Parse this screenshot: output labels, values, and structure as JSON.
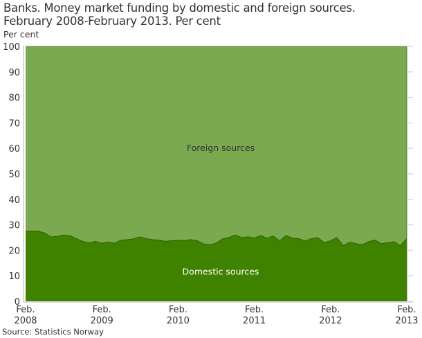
{
  "header": {
    "title_line1": "Banks. Money market funding by domestic and foreign sources.",
    "title_line2": "February 2008-February 2013. Per cent"
  },
  "axis": {
    "y_unit_label": "Per cent"
  },
  "footer": {
    "source": "Source: Statistics Norway"
  },
  "colors": {
    "domestic": "#3f8200",
    "foreign": "#7ba94f",
    "boundary_line": "#2e5e00",
    "axis": "#d9d9d9"
  },
  "chart_data": {
    "type": "area",
    "stacked": true,
    "title": "Banks. Money market funding by domestic and foreign sources. February 2008-February 2013. Per cent",
    "xlabel": "",
    "ylabel": "Per cent",
    "ylim": [
      0,
      100
    ],
    "yticks": [
      0,
      10,
      20,
      30,
      40,
      50,
      60,
      70,
      80,
      90,
      100
    ],
    "xticks": [
      {
        "line1": "Feb.",
        "line2": "2008",
        "index": 0
      },
      {
        "line1": "Feb.",
        "line2": "2009",
        "index": 12
      },
      {
        "line1": "Feb.",
        "line2": "2010",
        "index": 24
      },
      {
        "line1": "Feb.",
        "line2": "2011",
        "index": 36
      },
      {
        "line1": "Feb.",
        "line2": "2012",
        "index": 48
      },
      {
        "line1": "Feb.",
        "line2": "2013",
        "index": 60
      }
    ],
    "grid": false,
    "legend": "inline labels",
    "x_start": "2008-02",
    "x_end": "2013-02",
    "frequency": "monthly",
    "series": [
      {
        "name": "Domestic sources",
        "values": [
          27.5,
          27.5,
          27.5,
          26.8,
          25.2,
          25.5,
          26.0,
          25.7,
          24.6,
          23.5,
          22.9,
          23.5,
          22.8,
          23.2,
          22.8,
          24.0,
          24.2,
          24.5,
          25.3,
          24.6,
          24.2,
          24.0,
          23.5,
          23.8,
          23.9,
          23.8,
          24.2,
          23.8,
          22.5,
          22.2,
          22.8,
          24.5,
          25.0,
          26.0,
          25.0,
          25.3,
          24.8,
          25.8,
          24.8,
          25.6,
          23.7,
          25.8,
          24.8,
          24.6,
          23.6,
          24.6,
          25.0,
          23.0,
          23.8,
          25.0,
          21.8,
          23.2,
          22.6,
          22.2,
          23.4,
          24.0,
          22.6,
          23.0,
          23.4,
          21.8,
          24.6
        ]
      },
      {
        "name": "Foreign sources",
        "values": [
          72.5,
          72.5,
          72.5,
          73.2,
          74.8,
          74.5,
          74.0,
          74.3,
          75.4,
          76.5,
          77.1,
          76.5,
          77.2,
          76.8,
          77.2,
          76.0,
          75.8,
          75.5,
          74.7,
          75.4,
          75.8,
          76.0,
          76.5,
          76.2,
          76.1,
          76.2,
          75.8,
          76.2,
          77.5,
          77.8,
          77.2,
          75.5,
          75.0,
          74.0,
          75.0,
          74.7,
          75.2,
          74.2,
          75.2,
          74.4,
          76.3,
          74.2,
          75.2,
          75.4,
          76.4,
          75.4,
          75.0,
          77.0,
          76.2,
          75.0,
          78.2,
          76.8,
          77.4,
          77.8,
          76.6,
          76.0,
          77.4,
          77.0,
          76.6,
          78.2,
          75.4
        ]
      }
    ],
    "annotations": [
      {
        "text": "Foreign sources",
        "x_index": 27,
        "y": 60
      },
      {
        "text": "Domestic sources",
        "x_index": 27,
        "y": 11.5
      }
    ]
  }
}
